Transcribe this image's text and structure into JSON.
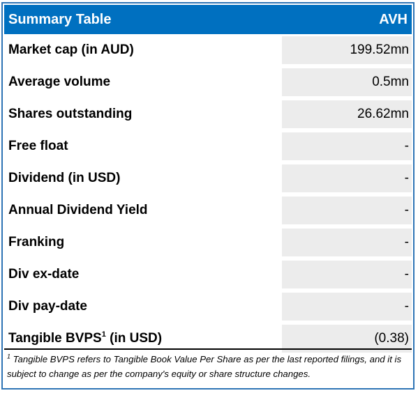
{
  "table": {
    "title": "Summary Table",
    "ticker": "AVH",
    "rows": [
      {
        "label": "Market cap (in AUD)",
        "value": "199.52mn"
      },
      {
        "label": "Average volume",
        "value": "0.5mn"
      },
      {
        "label": "Shares outstanding",
        "value": "26.62mn"
      },
      {
        "label": "Free float",
        "value": "-"
      },
      {
        "label": "Dividend (in USD)",
        "value": "-"
      },
      {
        "label": "Annual Dividend Yield",
        "value": "-"
      },
      {
        "label": "Franking",
        "value": "-"
      },
      {
        "label": "Div ex-date",
        "value": "-"
      },
      {
        "label": "Div pay-date",
        "value": "-"
      },
      {
        "label_pre": "Tangible BVPS",
        "label_sup": "1",
        "label_post": " (in USD)",
        "value": "(0.38)"
      }
    ]
  },
  "footnote": {
    "marker": "1",
    "text": " Tangible BVPS refers to Tangible Book Value Per Share as per the last reported filings, and it is subject to change as per the company's equity or share structure changes."
  },
  "colors": {
    "header_bg": "#0070c0",
    "header_text": "#ffffff",
    "value_bg": "#ececec",
    "border": "#2e74b5"
  }
}
